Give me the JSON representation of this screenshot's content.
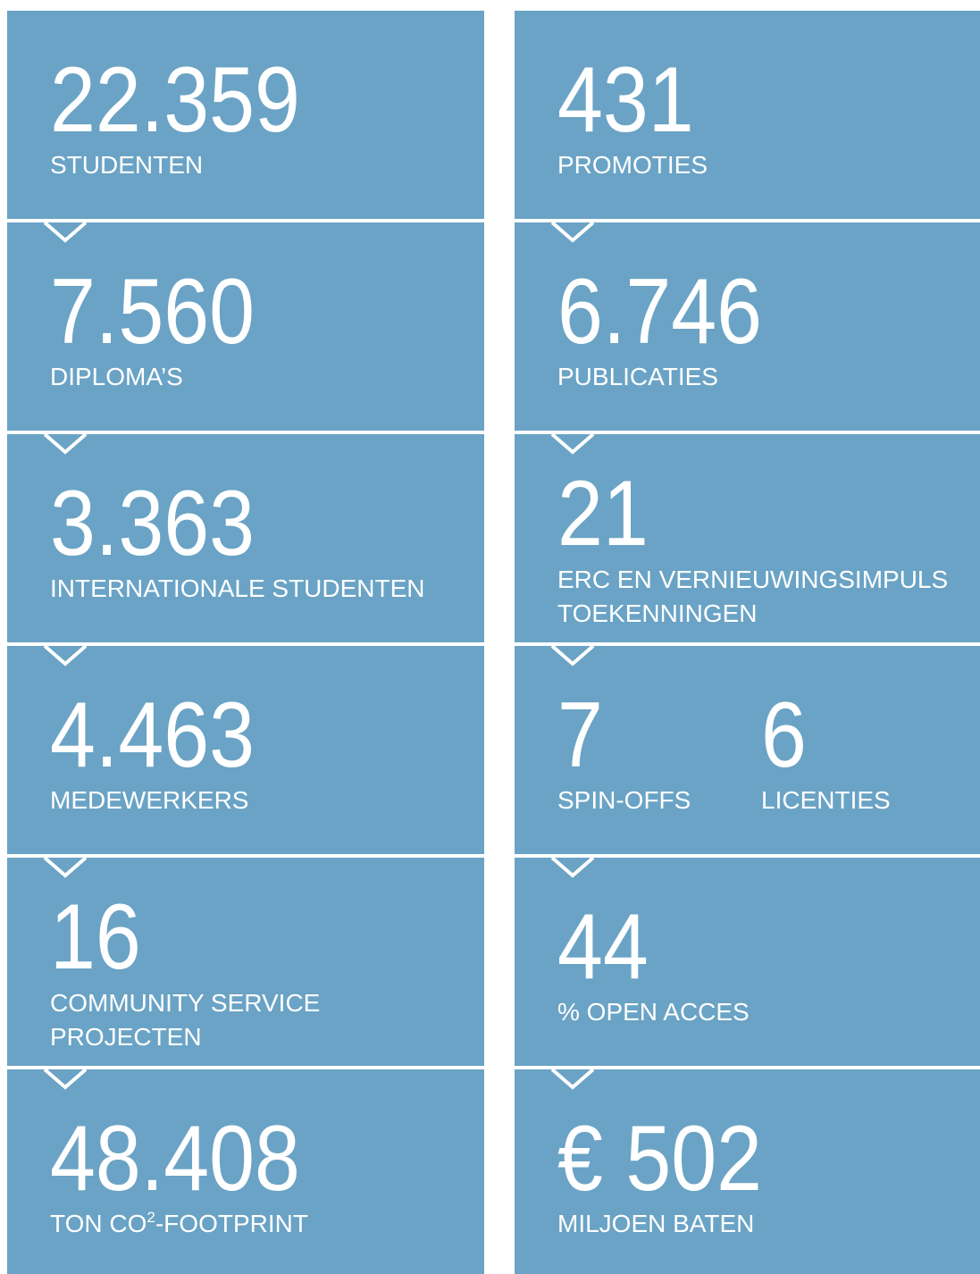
{
  "columns": [
    {
      "tiles": [
        {
          "items": [
            {
              "value": "22.359",
              "lines": [
                "STUDENTEN"
              ]
            }
          ]
        },
        {
          "items": [
            {
              "value": "7.560",
              "lines": [
                "DIPLOMA’S"
              ]
            }
          ]
        },
        {
          "items": [
            {
              "value": "3.363",
              "lines": [
                "INTERNATIONALE STUDENTEN"
              ]
            }
          ]
        },
        {
          "items": [
            {
              "value": "4.463",
              "lines": [
                "MEDEWERKERS"
              ]
            }
          ]
        },
        {
          "items": [
            {
              "value": "16",
              "lines": [
                "COMMUNITY SERVICE",
                "PROJECTEN"
              ]
            }
          ]
        },
        {
          "items": [
            {
              "value": "48.408",
              "lines": [
                {
                  "text": "TON CO",
                  "sup": "2",
                  "after": "-FOOTPRINT"
                }
              ]
            }
          ]
        }
      ]
    },
    {
      "tiles": [
        {
          "items": [
            {
              "value": "431",
              "lines": [
                "PROMOTIES"
              ]
            }
          ]
        },
        {
          "items": [
            {
              "value": "6.746",
              "lines": [
                "PUBLICATIES"
              ]
            }
          ]
        },
        {
          "items": [
            {
              "value": "21",
              "lines": [
                "ERC EN VERNIEUWINGSIMPULS",
                "TOEKENNINGEN"
              ]
            }
          ]
        },
        {
          "items": [
            {
              "value": "7",
              "lines": [
                "SPIN-OFFS"
              ]
            },
            {
              "value": "6",
              "lines": [
                "LICENTIES"
              ]
            }
          ]
        },
        {
          "items": [
            {
              "value": "44",
              "lines": [
                "% OPEN ACCES"
              ]
            }
          ]
        },
        {
          "items": [
            {
              "value": "€ 502",
              "lines": [
                "MILJOEN BATEN"
              ]
            }
          ]
        }
      ]
    }
  ]
}
